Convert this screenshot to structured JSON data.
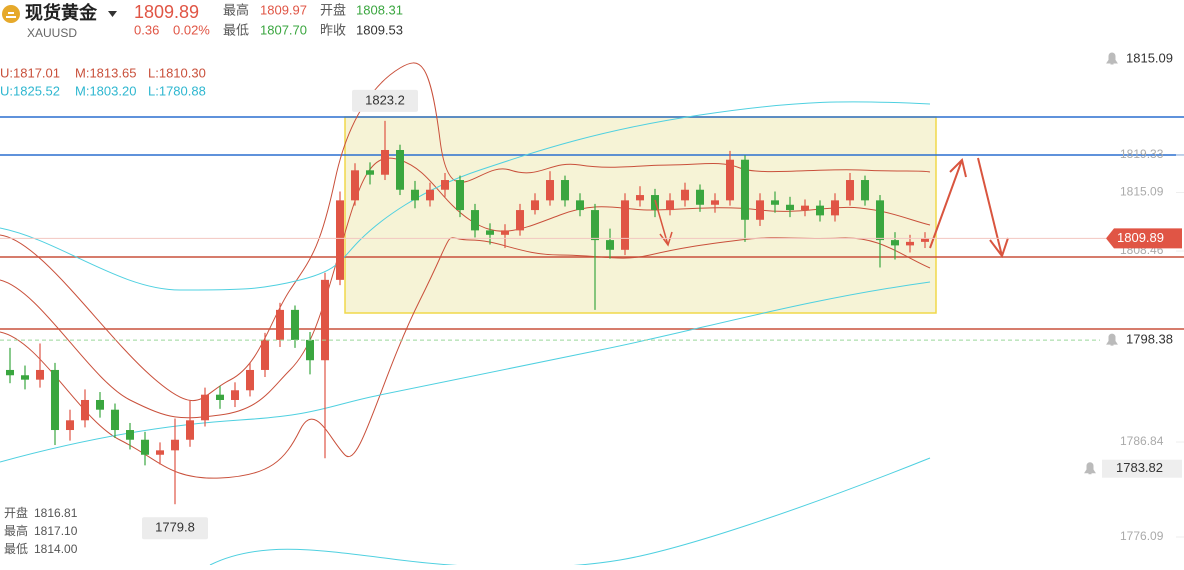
{
  "header": {
    "name": "现货黄金",
    "symbol": "XAUUSD",
    "price": "1809.89",
    "change": "0.36",
    "change_pct": "0.02%",
    "stats": [
      {
        "label": "最高",
        "value": "1809.97"
      },
      {
        "label": "开盘",
        "value": "1808.31"
      },
      {
        "label": "最低",
        "value": "1807.70"
      },
      {
        "label": "昨收",
        "value": "1809.53"
      }
    ]
  },
  "boll_short": [
    "U:1817.01",
    "M:1813.65",
    "L:1810.30"
  ],
  "boll_long": [
    "U:1825.52",
    "M:1803.20",
    "L:1780.88"
  ],
  "cursor_info": [
    {
      "label": "开盘",
      "value": "1816.81"
    },
    {
      "label": "最高",
      "value": "1817.10"
    },
    {
      "label": "最低",
      "value": "1814.00"
    }
  ],
  "chart": {
    "type": "candlestick",
    "ylim": [
      1772.92,
      1836.88
    ],
    "yticks": [
      1819.33,
      1815.09,
      1808.46,
      1786.84,
      1776.09
    ],
    "last_price": 1809.89,
    "alert_top": 1815.09,
    "alerts": [
      1798.38,
      1783.82
    ],
    "high_marker": 1823.2,
    "low_marker": 1779.8,
    "up_color": "#e05545",
    "down_color": "#3aa63f",
    "candles": {
      "open": [
        1795.0,
        1794.4,
        1793.9,
        1795.0,
        1788.2,
        1789.3,
        1791.6,
        1790.5,
        1788.2,
        1787.1,
        1785.4,
        1785.9,
        1787.1,
        1789.3,
        1792.2,
        1791.6,
        1792.7,
        1795.0,
        1798.4,
        1801.8,
        1798.4,
        1796.1,
        1805.2,
        1814.2,
        1817.6,
        1817.1,
        1819.9,
        1815.4,
        1814.2,
        1815.4,
        1816.5,
        1813.1,
        1810.8,
        1810.3,
        1810.8,
        1813.1,
        1814.2,
        1816.5,
        1814.2,
        1813.1,
        1809.7,
        1808.6,
        1814.2,
        1814.8,
        1813.1,
        1814.2,
        1815.4,
        1813.7,
        1814.2,
        1818.8,
        1812.0,
        1814.2,
        1813.7,
        1813.1,
        1813.6,
        1812.5,
        1814.2,
        1816.5,
        1814.2,
        1809.7,
        1809.1,
        1809.5
      ],
      "high": [
        1797.5,
        1795.5,
        1798.0,
        1795.8,
        1790.5,
        1792.8,
        1792.5,
        1791.2,
        1789.0,
        1788.0,
        1786.8,
        1789.5,
        1791.5,
        1793.0,
        1793.2,
        1793.6,
        1795.8,
        1799.2,
        1802.6,
        1802.3,
        1799.3,
        1806.0,
        1815.2,
        1818.4,
        1818.5,
        1823.2,
        1820.5,
        1816.4,
        1816.2,
        1817.3,
        1817.0,
        1813.8,
        1811.6,
        1811.5,
        1813.8,
        1815.0,
        1817.5,
        1817.0,
        1815.0,
        1813.8,
        1811.0,
        1815.0,
        1815.8,
        1815.5,
        1815.0,
        1816.2,
        1816.0,
        1815.0,
        1819.8,
        1819.3,
        1815.0,
        1815.2,
        1814.6,
        1814.3,
        1814.2,
        1815.0,
        1817.3,
        1817.0,
        1814.8,
        1810.6,
        1810.3,
        1810.6
      ],
      "low": [
        1793.5,
        1792.8,
        1793.0,
        1786.5,
        1787.0,
        1788.5,
        1789.6,
        1787.3,
        1786.0,
        1784.2,
        1784.3,
        1779.8,
        1786.3,
        1788.6,
        1790.6,
        1790.8,
        1792.0,
        1794.2,
        1797.6,
        1797.5,
        1794.5,
        1785.0,
        1804.6,
        1813.6,
        1816.0,
        1816.5,
        1814.8,
        1813.3,
        1813.5,
        1814.6,
        1812.3,
        1810.0,
        1809.2,
        1808.8,
        1810.2,
        1812.6,
        1813.6,
        1813.5,
        1812.4,
        1801.8,
        1807.6,
        1808.0,
        1813.5,
        1812.3,
        1812.5,
        1813.5,
        1812.9,
        1812.8,
        1813.6,
        1809.5,
        1811.3,
        1812.8,
        1812.3,
        1812.4,
        1811.8,
        1811.8,
        1813.6,
        1813.6,
        1806.6,
        1807.5,
        1808.3,
        1808.8
      ],
      "close": [
        1794.4,
        1793.9,
        1795.0,
        1788.2,
        1789.3,
        1791.6,
        1790.5,
        1788.2,
        1787.1,
        1785.4,
        1785.9,
        1787.1,
        1789.3,
        1792.2,
        1791.6,
        1792.7,
        1795.0,
        1798.4,
        1801.8,
        1798.4,
        1796.1,
        1805.2,
        1814.2,
        1817.6,
        1817.1,
        1819.9,
        1815.4,
        1814.2,
        1815.4,
        1816.5,
        1813.1,
        1810.8,
        1810.3,
        1810.8,
        1813.1,
        1814.2,
        1816.5,
        1814.2,
        1813.1,
        1809.7,
        1808.6,
        1814.2,
        1814.8,
        1813.1,
        1814.2,
        1815.4,
        1813.7,
        1814.2,
        1818.8,
        1812.0,
        1814.2,
        1813.7,
        1813.1,
        1813.6,
        1812.5,
        1814.2,
        1816.5,
        1814.2,
        1809.7,
        1809.1,
        1809.5,
        1809.9
      ]
    }
  }
}
